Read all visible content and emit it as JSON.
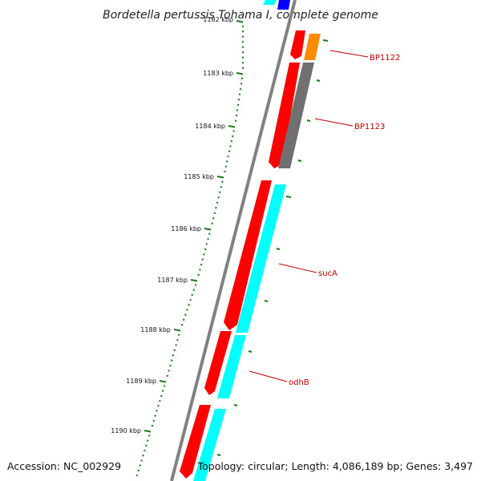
{
  "title": "Bordetella pertussis Tohama I, complete genome",
  "footer": {
    "accession": "Accession: NC_002929",
    "summary": "Topology: circular; Length: 4,086,189 bp; Genes: 3,497"
  },
  "ticks": [
    {
      "label": "1182 kbp",
      "kbp": 1182
    },
    {
      "label": "1183 kbp",
      "kbp": 1183
    },
    {
      "label": "1184 kbp",
      "kbp": 1184
    },
    {
      "label": "1185 kbp",
      "kbp": 1185
    },
    {
      "label": "1186 kbp",
      "kbp": 1186
    },
    {
      "label": "1187 kbp",
      "kbp": 1187
    },
    {
      "label": "1188 kbp",
      "kbp": 1188
    },
    {
      "label": "1189 kbp",
      "kbp": 1189
    },
    {
      "label": "1190 kbp",
      "kbp": 1190
    }
  ],
  "gene_labels": [
    {
      "name": "BP1122",
      "color": "#c00000"
    },
    {
      "name": "BP1123",
      "color": "#c00000"
    },
    {
      "name": "sucA",
      "color": "#c00000"
    },
    {
      "name": "odhB",
      "color": "#c00000"
    }
  ],
  "colors": {
    "backbone": "#808080",
    "cds": "#ff0000",
    "cog_cyan": "#00ffff",
    "cog_gray": "#707070",
    "cog_orange": "#ff8c00",
    "cog_blue": "#0000ff",
    "tick": "#1a7a1a",
    "label": "#c00000"
  }
}
